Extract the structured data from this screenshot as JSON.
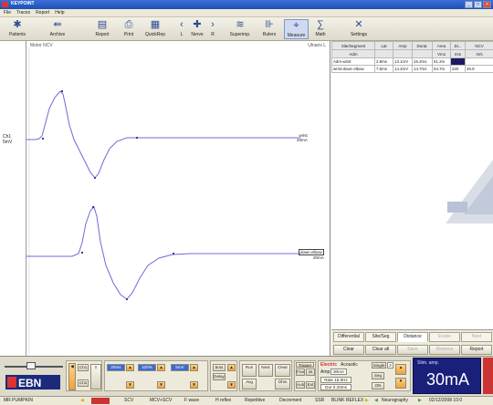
{
  "window": {
    "title": "KEYPOINT"
  },
  "menu": [
    "File",
    "Traces",
    "Report",
    "Help"
  ],
  "toolbar": [
    {
      "label": "Patients",
      "icon": "patients-icon",
      "glyph": "✱"
    },
    {
      "label": "Archive",
      "icon": "archive-icon",
      "glyph": "⇚"
    },
    {
      "label": "Report",
      "icon": "report-icon",
      "glyph": "▤"
    },
    {
      "label": "Print",
      "icon": "print-icon",
      "glyph": "⎙"
    },
    {
      "label": "QuickRep",
      "icon": "quickrep-icon",
      "glyph": "▦"
    },
    {
      "label": "L",
      "icon": "left-side-icon",
      "glyph": "‹"
    },
    {
      "label": "Nerve",
      "icon": "nerve-icon",
      "glyph": "✚"
    },
    {
      "label": "R",
      "icon": "right-side-icon",
      "glyph": "›"
    },
    {
      "label": "Superimp.",
      "icon": "superimpose-icon",
      "glyph": "≋"
    },
    {
      "label": "Rulers",
      "icon": "rulers-icon",
      "glyph": "⊪"
    },
    {
      "label": "Measure",
      "icon": "measure-icon",
      "glyph": "⌖"
    },
    {
      "label": "Math",
      "icon": "math-icon",
      "glyph": "∑"
    },
    {
      "label": "Settings",
      "icon": "settings-icon",
      "glyph": "✕"
    }
  ],
  "plot": {
    "title": "Motor NCV",
    "side": "Ulnaris L",
    "channel_label": "Ch1",
    "channel_sub": "5mV",
    "traces": [
      {
        "site": "wrist",
        "scale": "20mA"
      },
      {
        "site": "down elbow",
        "scale": "20mA"
      }
    ]
  },
  "table": {
    "headers": [
      "Site/Segment",
      "Lat",
      "Amp",
      "Durat.",
      "Area",
      "Di...",
      "NCV"
    ],
    "subheaders": [
      "Adm",
      "",
      "",
      "",
      "Vms",
      "mm",
      "m/s"
    ],
    "rows": [
      [
        "Adm-wrist",
        "2.8ms",
        "13.1mV",
        "15.2ms",
        "51.2m",
        "",
        ""
      ],
      [
        "wrist-down elbow",
        "7.5ms",
        "14.2mV",
        "14.7ms",
        "54.7m",
        "220",
        "46.9"
      ]
    ]
  },
  "tabs": [
    "Differential",
    "Site/Seg",
    "Distance",
    "Evoke",
    "Next"
  ],
  "actions": [
    "Clear",
    "Clear all",
    "Save",
    "Retrieve",
    "Report"
  ],
  "controls": {
    "channel1": "Ch1",
    "channel2": "Ch2",
    "sweep": "20ms",
    "gain": "100%",
    "sens": "5mV",
    "filter": "5ms",
    "run": "Run",
    "next": "Next",
    "clear": "Clear",
    "trigger": "Trigger",
    "free": "Free",
    "int": "Int",
    "avg": "Avg",
    "ohm": "Ohm",
    "auto": "Auto",
    "ext": "Ext",
    "delay": "Delay",
    "stim_type": "Electric",
    "acoustic": "Acoustic",
    "single": "Single",
    "amp": "Amp",
    "amp_val": "30mA",
    "rate": "Rate 15.0Hz",
    "dur": "Dur 0.20ms",
    "seq": "Seq",
    "on": "ON",
    "stim_title": "Stim. amp.",
    "stim_value": "30mA",
    "rep_count": "2"
  },
  "status": {
    "patient": "MR PUMPKIN",
    "items": [
      "SCV",
      "MCV+SCV",
      "F wave",
      "H reflex",
      "Repetitive",
      "Decrement",
      "SSR",
      "BLINK REFLEX"
    ],
    "mode": "Neurography",
    "date": "02/12/2008 10:0"
  },
  "colors": {
    "trace": "#6c6cd8",
    "accent_red": "#cc3333",
    "stim_blue": "#1a1f7a"
  },
  "logo": "EBN"
}
